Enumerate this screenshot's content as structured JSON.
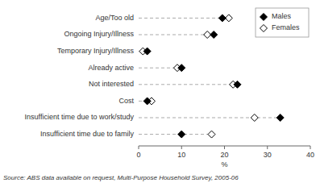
{
  "chart_data": {
    "type": "dot",
    "categories": [
      "Age/Too old",
      "Ongoing Injury/Illness",
      "Temporary Injury/Illness",
      "Already active",
      "Not interested",
      "Cost",
      "Insufficient time due to work/study",
      "Insufficient time due to family"
    ],
    "series": [
      {
        "name": "Males",
        "color": "black",
        "marker": "diamond",
        "values": [
          19.5,
          17.5,
          2.0,
          10.0,
          23.0,
          2.0,
          33.0,
          10.0
        ]
      },
      {
        "name": "Females",
        "color": "black",
        "marker": "diamond-open",
        "values": [
          21.0,
          16.0,
          1.0,
          9.0,
          22.0,
          3.0,
          27.0,
          17.0
        ]
      }
    ],
    "orientation": "horizontal",
    "line_style": "dashed",
    "xlabel": "%",
    "xlim": [
      0,
      40
    ],
    "xticks": [
      0,
      10,
      20,
      30,
      40
    ],
    "grid": false,
    "legend": "upper-right",
    "annotations": [
      "Source: ABS data available on request,  Multi-Purpose Household Survey,  2005-06"
    ]
  }
}
